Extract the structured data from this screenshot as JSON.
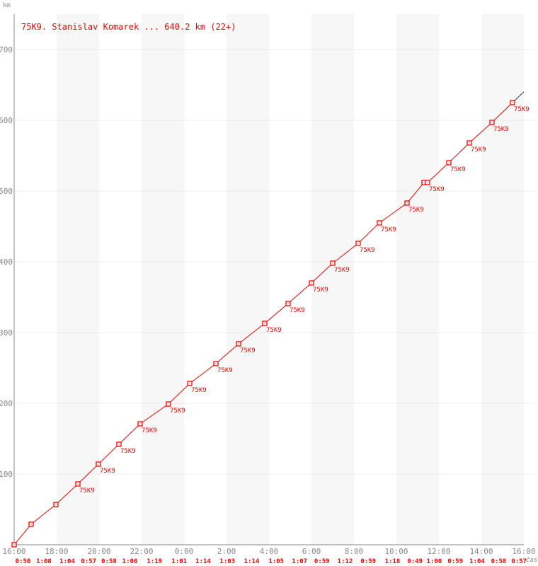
{
  "chart_data": {
    "type": "line",
    "title": "75K9. Stanislav Komarek ... 640.2 km (22+)",
    "ylabel": "km",
    "xlabel": "čas",
    "ylim": [
      0,
      750
    ],
    "yticks": [
      100,
      200,
      300,
      400,
      500,
      600,
      700
    ],
    "xlim": [
      "16:00",
      "16:00"
    ],
    "xticks": [
      "16:00",
      "18:00",
      "20:00",
      "22:00",
      "0:00",
      "2:00",
      "4:00",
      "6:00",
      "8:00",
      "10:00",
      "12:00",
      "14:00",
      "16:00"
    ],
    "grid": true,
    "colors": {
      "series": "#ff0000",
      "axis": "#888888",
      "band": "#f7f7f7",
      "grid": "#eeeeee"
    },
    "point_label": "75K9",
    "series": [
      {
        "points": [
          {
            "t": "16:00",
            "km": 0,
            "label": false
          },
          {
            "t": "16:48",
            "km": 29,
            "label": false
          },
          {
            "t": "17:58",
            "km": 57,
            "label": false
          },
          {
            "t": "19:00",
            "km": 86,
            "label": true
          },
          {
            "t": "19:58",
            "km": 114,
            "label": true
          },
          {
            "t": "20:56",
            "km": 142,
            "label": true
          },
          {
            "t": "21:56",
            "km": 171,
            "label": true
          },
          {
            "t": "23:16",
            "km": 199,
            "label": true
          },
          {
            "t": "0:16",
            "km": 228,
            "label": true
          },
          {
            "t": "1:30",
            "km": 256,
            "label": true
          },
          {
            "t": "2:34",
            "km": 284,
            "label": true
          },
          {
            "t": "3:48",
            "km": 313,
            "label": true
          },
          {
            "t": "4:54",
            "km": 341,
            "label": true
          },
          {
            "t": "6:00",
            "km": 370,
            "label": true
          },
          {
            "t": "7:00",
            "km": 398,
            "label": true
          },
          {
            "t": "8:12",
            "km": 426,
            "label": true
          },
          {
            "t": "9:12",
            "km": 455,
            "label": true
          },
          {
            "t": "10:30",
            "km": 483,
            "label": true
          },
          {
            "t": "11:18",
            "km": 512,
            "label": false
          },
          {
            "t": "11:28",
            "km": 512,
            "label": true
          },
          {
            "t": "12:28",
            "km": 540,
            "label": true
          },
          {
            "t": "13:26",
            "km": 568,
            "label": true
          },
          {
            "t": "14:30",
            "km": 597,
            "label": true
          },
          {
            "t": "15:28",
            "km": 625,
            "label": true
          }
        ],
        "end": {
          "t": "16:00",
          "km": 640.2
        }
      }
    ],
    "lap_times": [
      "0:50",
      "1:08",
      "1:04",
      "0:57",
      "0:58",
      "1:00",
      "1:19",
      "1:01",
      "1:14",
      "1:03",
      "1:14",
      "1:05",
      "1:07",
      "0:59",
      "1:12",
      "0:59",
      "1:18",
      "0:49",
      "1:00",
      "0:59",
      "1:04",
      "0:58",
      "0:57"
    ]
  }
}
